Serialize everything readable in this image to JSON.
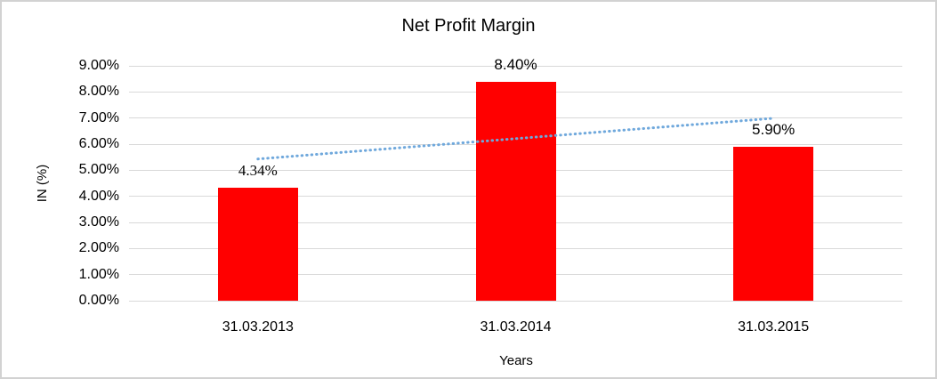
{
  "window": {
    "background": "#ffffff",
    "border_color": "#d2d2d2"
  },
  "chart_data": {
    "type": "bar",
    "title": "Net Profit Margin",
    "categories": [
      "31.03.2013",
      "31.03.2014",
      "31.03.2015"
    ],
    "values": [
      4.34,
      8.4,
      5.9
    ],
    "data_labels": [
      "4.34%",
      "8.40%",
      "5.90%"
    ],
    "data_label_fonts": [
      "serif",
      "sans",
      "sans"
    ],
    "xlabel": "Years",
    "ylabel": "IN (%)",
    "ylim": [
      0,
      9
    ],
    "ytick_step": 1,
    "ytick_labels": [
      "0.00%",
      "1.00%",
      "2.00%",
      "3.00%",
      "4.00%",
      "5.00%",
      "6.00%",
      "7.00%",
      "8.00%",
      "9.00%"
    ],
    "grid": true,
    "legend": "none",
    "bar_color": "#ff0000",
    "gridline_color": "#d9d9d9",
    "text_color": "#000000",
    "trendline": {
      "type": "linear",
      "style": "dotted",
      "color": "#6fa8dc",
      "endpoints_pct": [
        5.43,
        6.99
      ]
    }
  }
}
